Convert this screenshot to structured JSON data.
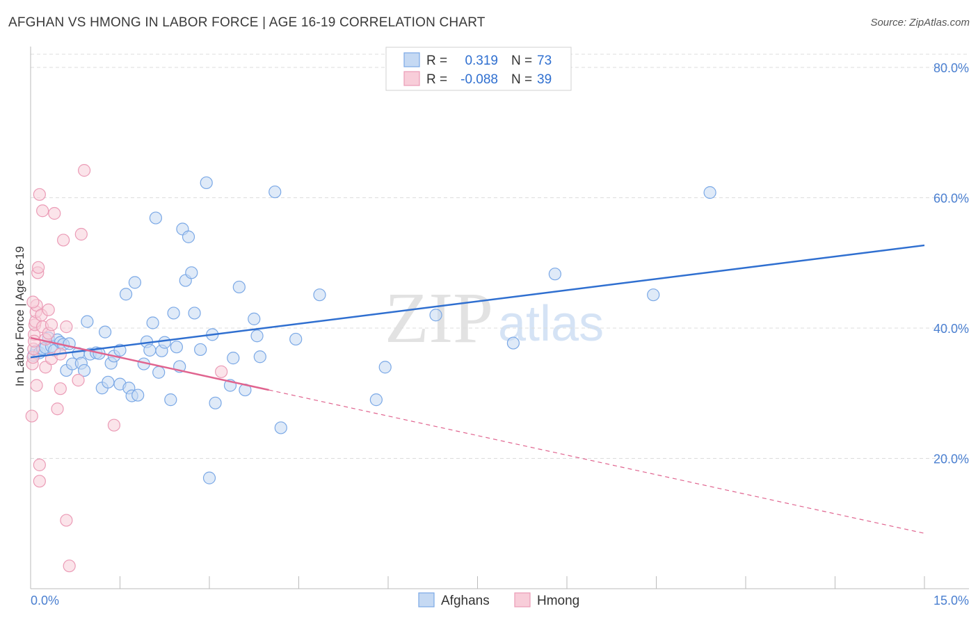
{
  "chart_data": {
    "type": "scatter",
    "title": "AFGHAN VS HMONG IN LABOR FORCE | AGE 16-19 CORRELATION CHART",
    "source": "Source: ZipAtlas.com",
    "ylabel": "In Labor Force | Age 16-19",
    "xlabel": "",
    "xlim": [
      0,
      15
    ],
    "ylim": [
      0,
      80
    ],
    "x_tick_labels": [
      "0.0%",
      "15.0%"
    ],
    "y_ticks": [
      20,
      40,
      60,
      80
    ],
    "y_tick_labels": [
      "20.0%",
      "40.0%",
      "60.0%",
      "80.0%"
    ],
    "grid": true,
    "watermark": {
      "zip": "ZIP",
      "atlas": "atlas"
    },
    "legend_stats": [
      {
        "series": "Afghans",
        "r_label": "R =",
        "r_value": "0.319",
        "n_label": "N =",
        "n_value": "73"
      },
      {
        "series": "Hmong",
        "r_label": "R =",
        "r_value": "-0.088",
        "n_label": "N =",
        "n_value": "39"
      }
    ],
    "series": [
      {
        "name": "Afghans",
        "color": "#7aa8e6",
        "fill": "#c5d9f3",
        "trend_color": "#2f6fd0",
        "trend": {
          "x_start": 0.0,
          "y_start": 35.5,
          "x_end": 15.0,
          "y_end": 52.7,
          "dashed_from_x": null
        },
        "points": [
          [
            0.05,
            35.8
          ],
          [
            0.1,
            36.5
          ],
          [
            0.15,
            36.2
          ],
          [
            0.2,
            36.8
          ],
          [
            0.25,
            37.0
          ],
          [
            0.3,
            38.5
          ],
          [
            0.35,
            37.2
          ],
          [
            0.4,
            36.6
          ],
          [
            0.45,
            38.2
          ],
          [
            0.5,
            37.8
          ],
          [
            0.55,
            37.5
          ],
          [
            0.6,
            33.5
          ],
          [
            0.65,
            37.6
          ],
          [
            0.7,
            34.5
          ],
          [
            0.8,
            36.1
          ],
          [
            0.85,
            34.6
          ],
          [
            0.9,
            33.5
          ],
          [
            0.95,
            41.0
          ],
          [
            1.0,
            36.0
          ],
          [
            1.1,
            36.2
          ],
          [
            1.15,
            36.1
          ],
          [
            1.2,
            30.8
          ],
          [
            1.25,
            39.4
          ],
          [
            1.3,
            31.7
          ],
          [
            1.35,
            34.6
          ],
          [
            1.4,
            35.7
          ],
          [
            1.5,
            31.4
          ],
          [
            1.5,
            36.6
          ],
          [
            1.6,
            45.2
          ],
          [
            1.65,
            30.8
          ],
          [
            1.7,
            29.6
          ],
          [
            1.75,
            47.0
          ],
          [
            1.8,
            29.7
          ],
          [
            1.9,
            34.5
          ],
          [
            1.95,
            37.9
          ],
          [
            2.0,
            36.6
          ],
          [
            2.05,
            40.8
          ],
          [
            2.1,
            56.9
          ],
          [
            2.15,
            33.2
          ],
          [
            2.2,
            36.5
          ],
          [
            2.25,
            37.8
          ],
          [
            2.35,
            29.0
          ],
          [
            2.4,
            42.3
          ],
          [
            2.45,
            37.1
          ],
          [
            2.5,
            34.1
          ],
          [
            2.55,
            55.2
          ],
          [
            2.6,
            47.3
          ],
          [
            2.65,
            54.0
          ],
          [
            2.7,
            48.5
          ],
          [
            2.75,
            42.3
          ],
          [
            2.85,
            36.7
          ],
          [
            2.95,
            62.3
          ],
          [
            3.05,
            39.0
          ],
          [
            3.1,
            28.5
          ],
          [
            3.35,
            31.2
          ],
          [
            3.4,
            35.4
          ],
          [
            3.5,
            46.3
          ],
          [
            3.6,
            30.5
          ],
          [
            3.75,
            41.4
          ],
          [
            3.8,
            38.8
          ],
          [
            3.85,
            35.6
          ],
          [
            4.1,
            60.9
          ],
          [
            4.2,
            24.7
          ],
          [
            4.45,
            38.3
          ],
          [
            4.85,
            45.1
          ],
          [
            5.8,
            29.0
          ],
          [
            5.95,
            34.0
          ],
          [
            6.8,
            42.0
          ],
          [
            8.1,
            37.7
          ],
          [
            8.8,
            48.3
          ],
          [
            10.45,
            45.1
          ],
          [
            11.4,
            60.8
          ],
          [
            3.0,
            17.0
          ]
        ]
      },
      {
        "name": "Hmong",
        "color": "#eb9bb6",
        "fill": "#f8cdd9",
        "trend_color": "#e0648f",
        "trend": {
          "x_start": 0.0,
          "y_start": 38.5,
          "x_end": 15.0,
          "y_end": 8.5,
          "dashed_from_x": 4.0
        },
        "points": [
          [
            0.02,
            26.5
          ],
          [
            0.03,
            34.5
          ],
          [
            0.04,
            35.5
          ],
          [
            0.05,
            36.8
          ],
          [
            0.06,
            39.0
          ],
          [
            0.07,
            40.5
          ],
          [
            0.08,
            41.0
          ],
          [
            0.09,
            42.5
          ],
          [
            0.1,
            43.5
          ],
          [
            0.1,
            31.2
          ],
          [
            0.12,
            48.5
          ],
          [
            0.13,
            49.3
          ],
          [
            0.15,
            19.0
          ],
          [
            0.15,
            16.5
          ],
          [
            0.15,
            60.5
          ],
          [
            0.18,
            42.0
          ],
          [
            0.2,
            40.2
          ],
          [
            0.2,
            58.0
          ],
          [
            0.25,
            34.0
          ],
          [
            0.25,
            38.3
          ],
          [
            0.3,
            42.8
          ],
          [
            0.3,
            39.2
          ],
          [
            0.35,
            35.3
          ],
          [
            0.4,
            57.6
          ],
          [
            0.45,
            27.6
          ],
          [
            0.5,
            30.7
          ],
          [
            0.55,
            53.5
          ],
          [
            0.6,
            10.5
          ],
          [
            0.6,
            40.2
          ],
          [
            0.65,
            3.5
          ],
          [
            0.8,
            32.0
          ],
          [
            0.85,
            54.4
          ],
          [
            0.9,
            64.2
          ],
          [
            1.4,
            25.1
          ],
          [
            3.2,
            33.3
          ],
          [
            0.04,
            44.0
          ],
          [
            0.06,
            38.0
          ],
          [
            0.35,
            40.5
          ],
          [
            0.5,
            36.0
          ]
        ]
      }
    ]
  }
}
